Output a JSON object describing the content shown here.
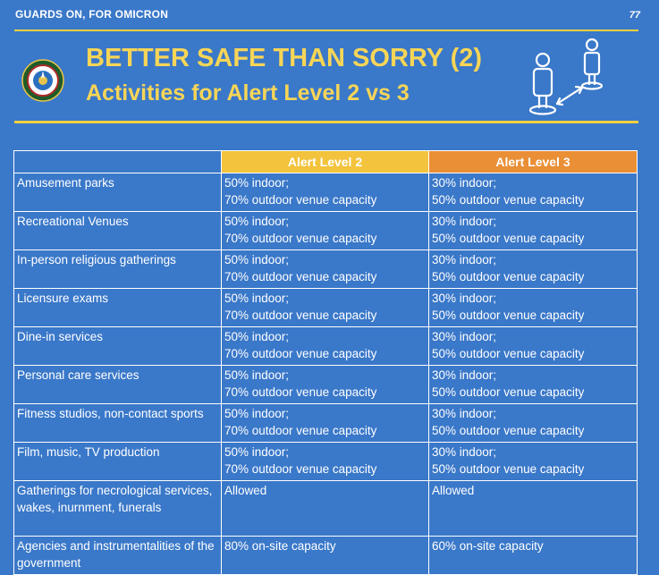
{
  "header": {
    "label": "GUARDS ON, FOR OMICRON",
    "page_number": "77"
  },
  "title": {
    "line1": "BETTER SAFE THAN SORRY (2)",
    "line2": "Activities for Alert Level 2 vs 3"
  },
  "icons": {
    "seal": "department-seal-icon",
    "distancing": "social-distancing-icon"
  },
  "colors": {
    "background": "#3a78c9",
    "title": "#f7d557",
    "alert_level_2": "#f3c33d",
    "alert_level_3": "#ea8f36"
  },
  "table": {
    "headers": [
      "",
      "Alert Level 2",
      "Alert Level 3"
    ],
    "rows": [
      {
        "activity": "Amusement parks",
        "level2": [
          "50% indoor;",
          "70% outdoor venue capacity"
        ],
        "level3": [
          "30% indoor;",
          "50% outdoor venue capacity"
        ]
      },
      {
        "activity": "Recreational Venues",
        "level2": [
          "50% indoor;",
          "70% outdoor venue capacity"
        ],
        "level3": [
          "30% indoor;",
          "50% outdoor venue capacity"
        ]
      },
      {
        "activity": "In-person religious gatherings",
        "level2": [
          "50% indoor;",
          "70% outdoor venue capacity"
        ],
        "level3": [
          "30% indoor;",
          "50% outdoor venue capacity"
        ]
      },
      {
        "activity": "Licensure exams",
        "level2": [
          "50% indoor;",
          "70% outdoor venue capacity"
        ],
        "level3": [
          "30% indoor;",
          "50% outdoor venue capacity"
        ]
      },
      {
        "activity": "Dine-in services",
        "level2": [
          "50% indoor;",
          "70% outdoor venue capacity"
        ],
        "level3": [
          "30% indoor;",
          "50% outdoor venue capacity"
        ]
      },
      {
        "activity": "Personal care services",
        "level2": [
          "50% indoor;",
          "70% outdoor venue capacity"
        ],
        "level3": [
          "30% indoor;",
          "50% outdoor venue capacity"
        ]
      },
      {
        "activity": "Fitness studios, non-contact sports",
        "level2": [
          "50% indoor;",
          "70% outdoor venue capacity"
        ],
        "level3": [
          "30% indoor;",
          "50% outdoor venue capacity"
        ]
      },
      {
        "activity": "Film, music, TV production",
        "level2": [
          "50% indoor;",
          "70% outdoor venue capacity"
        ],
        "level3": [
          "30% indoor;",
          "50% outdoor venue capacity"
        ]
      },
      {
        "activity": "Gatherings for necrological services, wakes, inurnment, funerals",
        "level2": [
          "Allowed"
        ],
        "level3": [
          "Allowed"
        ]
      },
      {
        "activity": "Agencies and instrumentalities of the government",
        "level2": [
          "80% on-site capacity"
        ],
        "level3": [
          "60% on-site capacity"
        ]
      }
    ]
  }
}
